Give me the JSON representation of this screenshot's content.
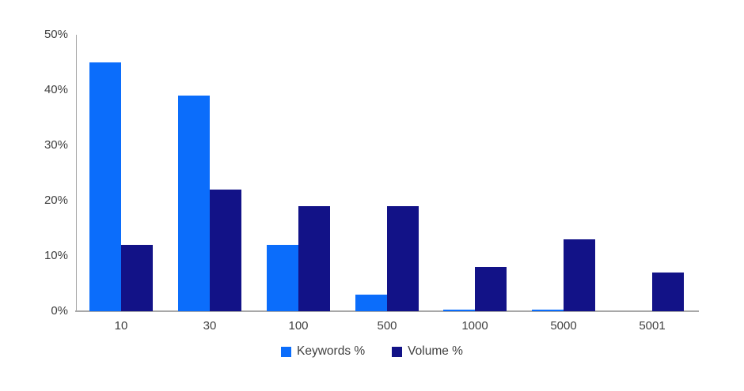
{
  "chart_data": {
    "type": "bar",
    "title": "",
    "categories": [
      "10",
      "30",
      "100",
      "500",
      "1000",
      "5000",
      "5001"
    ],
    "series": [
      {
        "name": "Keywords %",
        "color": "#0b6dfb",
        "values": [
          45,
          39,
          12,
          3,
          0.3,
          0.3,
          0
        ]
      },
      {
        "name": "Volume %",
        "color": "#121287",
        "values": [
          12,
          22,
          19,
          19,
          8,
          13,
          7
        ]
      }
    ],
    "ylim": [
      0,
      50
    ],
    "yticks": [
      0,
      10,
      20,
      30,
      40,
      50
    ],
    "ytick_labels": [
      "0%",
      "10%",
      "20%",
      "30%",
      "40%",
      "50%"
    ],
    "grid": false,
    "legend_position": "bottom",
    "axis_color": "#a8a8a8",
    "text_color": "#3f3f3f"
  }
}
